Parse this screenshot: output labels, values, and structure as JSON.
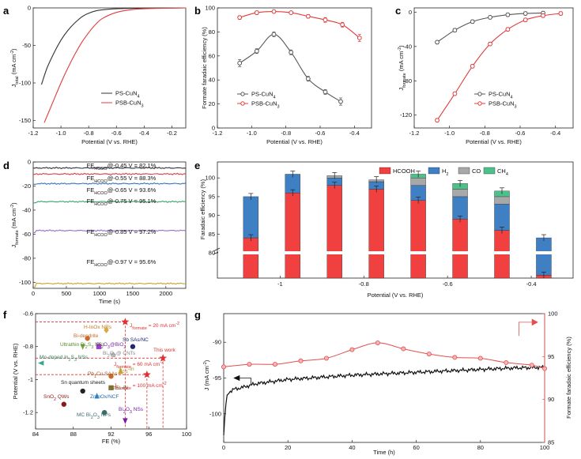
{
  "panel_letters": [
    "a",
    "b",
    "c",
    "d",
    "e",
    "f",
    "g"
  ],
  "chart_data": [
    {
      "id": "a",
      "type": "line",
      "xlabel": "Potential (V vs. RHE)",
      "ylabel": "J_total (mA cm^-2)",
      "ylabel_main": "J",
      "ylabel_sub": "total",
      "ylabel_unit": " (mA cm",
      "ylabel_exp": "-2",
      "ylabel_close": ")",
      "xlim": [
        -1.2,
        -0.1
      ],
      "ylim": [
        -160,
        0
      ],
      "xticks": [
        -1.2,
        -1.0,
        -0.8,
        -0.6,
        -0.4,
        -0.2
      ],
      "yticks": [
        -150,
        -100,
        -50,
        0
      ],
      "xtick_labels": [
        "-1.2",
        "-1.0",
        "-0.8",
        "-0.6",
        "-0.4",
        "-0.2"
      ],
      "ytick_labels": [
        "-150",
        "-100",
        "-50",
        "0"
      ],
      "legend": [
        "PS-CuN4",
        "PSB-CuN3"
      ],
      "series": [
        {
          "name": "PS-CuN4",
          "color": "#333333",
          "x": [
            -1.14,
            -1.1,
            -1.05,
            -1.0,
            -0.95,
            -0.9,
            -0.85,
            -0.8,
            -0.75,
            -0.7,
            -0.6,
            -0.5,
            -0.4,
            -0.3,
            -0.2,
            -0.1
          ],
          "y": [
            -102,
            -80,
            -60,
            -43,
            -30,
            -20,
            -12,
            -7,
            -4,
            -2.5,
            -1.2,
            -0.6,
            -0.3,
            -0.2,
            -0.1,
            0
          ]
        },
        {
          "name": "PSB-CuN3",
          "color": "#e03c3c",
          "x": [
            -1.12,
            -1.05,
            -1.0,
            -0.95,
            -0.9,
            -0.85,
            -0.8,
            -0.75,
            -0.7,
            -0.6,
            -0.5,
            -0.4,
            -0.3,
            -0.2,
            -0.1
          ],
          "y": [
            -153,
            -122,
            -100,
            -80,
            -62,
            -46,
            -33,
            -22,
            -14,
            -6,
            -2.5,
            -1.2,
            -0.6,
            -0.3,
            0
          ]
        }
      ]
    },
    {
      "id": "b",
      "type": "line",
      "xlabel": "Potential (V vs. RHE)",
      "ylabel": "Formate faradaic efficiency (%)",
      "xlim": [
        -1.2,
        -0.3
      ],
      "ylim": [
        0,
        100
      ],
      "xticks": [
        -1.2,
        -1.0,
        -0.8,
        -0.6,
        -0.4
      ],
      "yticks": [
        0,
        20,
        40,
        60,
        80,
        100
      ],
      "xtick_labels": [
        "-1.2",
        "-1.0",
        "-0.8",
        "-0.6",
        "-0.4"
      ],
      "ytick_labels": [
        "0",
        "20",
        "40",
        "60",
        "80",
        "100"
      ],
      "legend": [
        "PS-CuN4",
        "PSB-CuN3"
      ],
      "series": [
        {
          "name": "PS-CuN4",
          "color": "#555555",
          "x": [
            -1.07,
            -0.97,
            -0.87,
            -0.77,
            -0.67,
            -0.57,
            -0.48
          ],
          "y": [
            54,
            64,
            78,
            63,
            41,
            30,
            22
          ],
          "err": [
            3,
            2,
            2,
            2,
            2,
            2,
            3
          ]
        },
        {
          "name": "PSB-CuN3",
          "color": "#e03c3c",
          "x": [
            -1.07,
            -0.97,
            -0.87,
            -0.77,
            -0.67,
            -0.57,
            -0.47,
            -0.37
          ],
          "y": [
            92,
            96,
            97,
            96,
            93,
            90,
            86,
            75
          ],
          "err": [
            1.5,
            1.5,
            1,
            1,
            1.5,
            2,
            2,
            3
          ]
        }
      ]
    },
    {
      "id": "c",
      "type": "line",
      "xlabel": "Potential (V vs. RHE)",
      "ylabel": "J_formate (mA cm^-2)",
      "ylabel_main": "J",
      "ylabel_sub": "formate",
      "ylabel_unit": " (mA cm",
      "ylabel_exp": "-2",
      "ylabel_close": ")",
      "xlim": [
        -1.2,
        -0.3
      ],
      "ylim": [
        -135,
        5
      ],
      "xticks": [
        -1.2,
        -1.0,
        -0.8,
        -0.6,
        -0.4
      ],
      "yticks": [
        -120,
        -80,
        -40,
        0
      ],
      "xtick_labels": [
        "-1.2",
        "-1.0",
        "-0.8",
        "-0.6",
        "-0.4"
      ],
      "ytick_labels": [
        "-120",
        "-80",
        "-40",
        "0"
      ],
      "legend": [
        "PS-CuN4",
        "PSB-CuN3"
      ],
      "series": [
        {
          "name": "PS-CuN4",
          "color": "#555555",
          "x": [
            -1.07,
            -0.97,
            -0.87,
            -0.77,
            -0.67,
            -0.57,
            -0.47
          ],
          "y": [
            -35,
            -21,
            -11,
            -6,
            -3,
            -1.5,
            -1
          ],
          "err": [
            2,
            2,
            2,
            2,
            2,
            2,
            2
          ]
        },
        {
          "name": "PSB-CuN3",
          "color": "#e03c3c",
          "x": [
            -1.07,
            -0.97,
            -0.87,
            -0.77,
            -0.67,
            -0.57,
            -0.47,
            -0.37
          ],
          "y": [
            -126,
            -95,
            -63,
            -37,
            -20,
            -9,
            -4,
            -1.5
          ],
          "err": [
            2,
            2,
            2,
            2,
            2,
            2,
            2,
            2
          ]
        }
      ]
    },
    {
      "id": "d",
      "type": "line",
      "xlabel": "Time (s)",
      "ylabel": "J_formate (mA cm^-2)",
      "ylabel_main": "J",
      "ylabel_sub": "formate",
      "ylabel_unit": " (mA cm",
      "ylabel_exp": "-2",
      "ylabel_close": ")",
      "xlim": [
        0,
        2300
      ],
      "ylim": [
        -105,
        0
      ],
      "xticks": [
        0,
        500,
        1000,
        1500,
        2000
      ],
      "yticks": [
        -100,
        -80,
        -60,
        -40,
        -20,
        0
      ],
      "xtick_labels": [
        "0",
        "500",
        "1000",
        "1500",
        "2000"
      ],
      "ytick_labels": [
        "-100",
        "-80",
        "-60",
        "-40",
        "-20",
        "0"
      ],
      "series": [
        {
          "name": "-0.45 V",
          "color": "#333333",
          "level": -5,
          "label_pre": "FE",
          "label_sub": "HCOO",
          "label_post": "@-0.45 V = 82.1%"
        },
        {
          "name": "-0.55 V",
          "color": "#e03c3c",
          "level": -10,
          "label_pre": "FE",
          "label_sub": "HCOO",
          "label_post": "@-0.55 V = 88.3%"
        },
        {
          "name": "-0.65 V",
          "color": "#3a73b8",
          "level": -18,
          "label_pre": "FE",
          "label_sub": "HCOO",
          "label_post": "@-0.65 V = 93.6%"
        },
        {
          "name": "-0.75 V",
          "color": "#3aa56a",
          "level": -33,
          "label_pre": "FE",
          "label_sub": "HCOO",
          "label_post": "@-0.75 V = 95.1%"
        },
        {
          "name": "-0.85 V",
          "color": "#9b6bc9",
          "level": -57,
          "label_pre": "FE",
          "label_sub": "HCOO",
          "label_post": "@-0.85 V = 97.2%"
        },
        {
          "name": "-0.97 V",
          "color": "#c8a22a",
          "level": -101,
          "label_pre": "FE",
          "label_sub": "HCOO",
          "label_post": "@-0.97 V = 95.6%"
        }
      ]
    },
    {
      "id": "e",
      "type": "bar",
      "xlabel": "Potential (V vs. RHE)",
      "ylabel": "Faradaic efficiency (%)",
      "xticks": [
        -1.0,
        -0.8,
        -0.6,
        -0.4
      ],
      "xtick_labels": [
        "-1",
        "-0.8",
        "-0.6",
        "-0.4"
      ],
      "yticks": [
        80,
        85,
        90,
        95,
        100
      ],
      "ytick_labels": [
        "80",
        "85",
        "90",
        "95",
        "100"
      ],
      "legend": [
        "HCOOH",
        "H2",
        "CO",
        "CH4"
      ],
      "colors": {
        "HCOOH": "#f04040",
        "H2": "#3f7fc4",
        "CO": "#a8a8a8",
        "CH4": "#4cc28a"
      },
      "x": [
        -1.07,
        -0.97,
        -0.87,
        -0.77,
        -0.67,
        -0.57,
        -0.47,
        -0.37
      ],
      "series": [
        {
          "name": "HCOOH",
          "values": [
            84,
            96,
            98,
            97,
            94,
            89,
            86,
            74
          ]
        },
        {
          "name": "H2",
          "values": [
            11,
            5,
            2,
            2,
            4,
            6,
            7,
            10
          ]
        },
        {
          "name": "CO",
          "values": [
            0,
            0,
            0.6,
            0.5,
            2,
            2,
            2,
            0
          ]
        },
        {
          "name": "CH4",
          "values": [
            0,
            0,
            0,
            0,
            1,
            1.5,
            1.5,
            0
          ]
        }
      ]
    },
    {
      "id": "f",
      "type": "scatter",
      "xlabel": "FE (%)",
      "ylabel": "Potential (V vs. RHE)",
      "xlim": [
        84,
        100
      ],
      "ylim": [
        -1.3,
        -0.6
      ],
      "xticks": [
        84,
        88,
        92,
        96,
        100
      ],
      "yticks": [
        -1.2,
        -1.0,
        -0.8,
        -0.6
      ],
      "xtick_labels": [
        "84",
        "88",
        "92",
        "96",
        "100"
      ],
      "ytick_labels": [
        "-1.2",
        "-1",
        "-0.8",
        "-0.6"
      ],
      "reference_lines": [
        "J_formate = 20 mA cm^-2",
        "J_formate = 60 mA cm^-2",
        "J_formate = 100 mA cm^-2"
      ],
      "points": [
        {
          "label": "H-InOx NRs",
          "x": 91.5,
          "y": -0.7,
          "color": "#d9a93a",
          "shape": "diamond"
        },
        {
          "label": "Bi-dendrite",
          "x": 89.5,
          "y": -0.75,
          "color": "#c96a2b",
          "shape": "circle"
        },
        {
          "label": "Ultrathin Bi2S3 NSs",
          "x": 89.0,
          "y": -0.8,
          "color": "#73a83a",
          "shape": "triangle-down"
        },
        {
          "label": "Bi2O3@BiO2",
          "x": 90.7,
          "y": -0.8,
          "color": "#9b3fc9",
          "shape": "square"
        },
        {
          "label": "Sb SAs/NC",
          "x": 94.3,
          "y": -0.8,
          "color": "#202a6a",
          "shape": "circle"
        },
        {
          "label": "Bi2O2@ CNTs",
          "x": 92.2,
          "y": -0.85,
          "color": "#b8b8b8",
          "shape": "circle"
        },
        {
          "label": "Mn-doped In2S3 NSs",
          "x": 84.6,
          "y": -0.9,
          "color": "#3aa58a",
          "shape": "triangle-left"
        },
        {
          "label": "S0.1-In",
          "x": 93.0,
          "y": -0.95,
          "color": "#c8a22a",
          "shape": "triangle-up"
        },
        {
          "label": "This work",
          "x": 97.5,
          "y": -0.87,
          "color": "#e03030",
          "shape": "star"
        },
        {
          "label": "Pb1Cu SAAs",
          "x": 92.0,
          "y": -0.98,
          "color": "#c96a2b",
          "shape": "circle"
        },
        {
          "label": "Sn quantum sheets",
          "x": 89.0,
          "y": -1.07,
          "color": "#222222",
          "shape": "circle"
        },
        {
          "label": "rBiEL-Bi",
          "x": 92.0,
          "y": -1.05,
          "color": "#8a7a3a",
          "shape": "square"
        },
        {
          "label": "ZnInOx/NCF",
          "x": 90.5,
          "y": -1.1,
          "color": "#3a8ac9",
          "shape": "triangle-up"
        },
        {
          "label": "SnO2 QWs",
          "x": 87.0,
          "y": -1.15,
          "color": "#8a1a1a",
          "shape": "circle"
        },
        {
          "label": "MC Bi2O3 NPs",
          "x": 91.3,
          "y": -1.2,
          "color": "#3a6a6a",
          "shape": "circle"
        },
        {
          "label": "Bi2O3 NSs",
          "x": 93.5,
          "y": -1.25,
          "color": "#7a1aa8",
          "shape": "triangle-down"
        },
        {
          "label": "This work (20)",
          "x": 93.5,
          "y": -0.65,
          "color": "#e03030",
          "shape": "star"
        },
        {
          "label": "This work (100)",
          "x": 95.8,
          "y": -0.97,
          "color": "#e03030",
          "shape": "star"
        }
      ]
    },
    {
      "id": "g",
      "type": "line",
      "xlabel": "Time (h)",
      "ylabel_left": "J (mA cm^-2)",
      "ylabel_right": "Formate faradaic efficiency (%)",
      "xlim": [
        0,
        100
      ],
      "ylim_left": [
        -104,
        -86
      ],
      "ylim_right": [
        85,
        100
      ],
      "xticks": [
        0,
        20,
        40,
        60,
        80,
        100
      ],
      "xtick_labels": [
        "0",
        "20",
        "40",
        "60",
        "80",
        "100"
      ],
      "yticks_left": [
        -100,
        -95,
        -90
      ],
      "ytick_labels_left": [
        "-100",
        "-95",
        "-90"
      ],
      "yticks_right": [
        85,
        90,
        95,
        100
      ],
      "ytick_labels_right": [
        "85",
        "90",
        "95",
        "100"
      ],
      "fe_series": {
        "name": "Formate FE",
        "color": "#e05050",
        "x": [
          0,
          8,
          16,
          24,
          32,
          40,
          48,
          56,
          64,
          72,
          80,
          88,
          96,
          100
        ],
        "y": [
          93.8,
          94.1,
          94.1,
          94.5,
          94.8,
          95.8,
          96.6,
          95.9,
          95.3,
          94.9,
          94.8,
          94.3,
          94.0,
          93.6
        ]
      },
      "j_series": {
        "name": "J",
        "color": "#111111",
        "x": [
          0,
          0.3,
          0.8,
          1.5,
          3,
          6,
          10,
          20,
          30,
          40,
          50,
          60,
          70,
          80,
          90,
          100
        ],
        "y": [
          -103,
          -101,
          -98,
          -97,
          -96.6,
          -96.3,
          -95.8,
          -95.2,
          -94.9,
          -94.6,
          -94.4,
          -94.2,
          -94.0,
          -93.8,
          -93.6,
          -93.5
        ]
      }
    }
  ]
}
